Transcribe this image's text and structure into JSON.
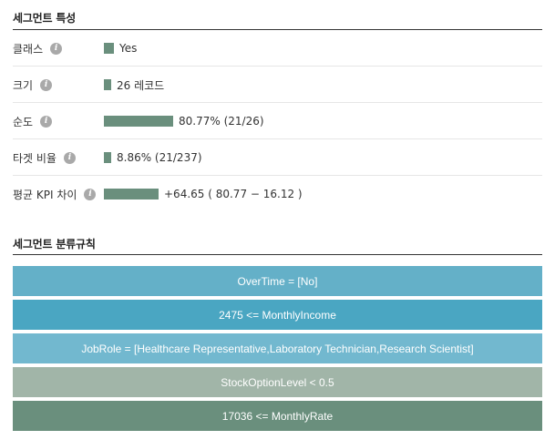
{
  "characteristics": {
    "title": "세그먼트 특성",
    "rows": [
      {
        "label": "클래스",
        "value_text": "Yes",
        "fill": 0.02
      },
      {
        "label": "크기",
        "value_text": "26 레코드",
        "fill": 0.01
      },
      {
        "label": "순도",
        "value_text": "80.77% (21/26)",
        "fill": 0.1325
      },
      {
        "label": "타겟 비율",
        "value_text": "8.86% (21/237)",
        "fill": 0.0145
      },
      {
        "label": "평균 KPI 차이",
        "value_text": "+64.65 ( 80.77 − 16.12 )",
        "fill": 0.105
      }
    ]
  },
  "rules": {
    "title": "세그먼트 분류규칙",
    "items": [
      {
        "text": "OverTime = [No]",
        "color": "#64b0c8"
      },
      {
        "text": "2475 <= MonthlyIncome",
        "color": "#4aa6c2"
      },
      {
        "text": "JobRole = [Healthcare Representative,Laboratory Technician,Research Scientist]",
        "color": "#72b8cf"
      },
      {
        "text": "StockOptionLevel < 0.5",
        "color": "#a1b5a8"
      },
      {
        "text": "17036 <= MonthlyRate",
        "color": "#6a8f7d"
      }
    ]
  },
  "colors": {
    "bar": "#6a8f7d",
    "info_icon": "#a9a9a9"
  },
  "icons": {
    "info": "info-icon"
  }
}
